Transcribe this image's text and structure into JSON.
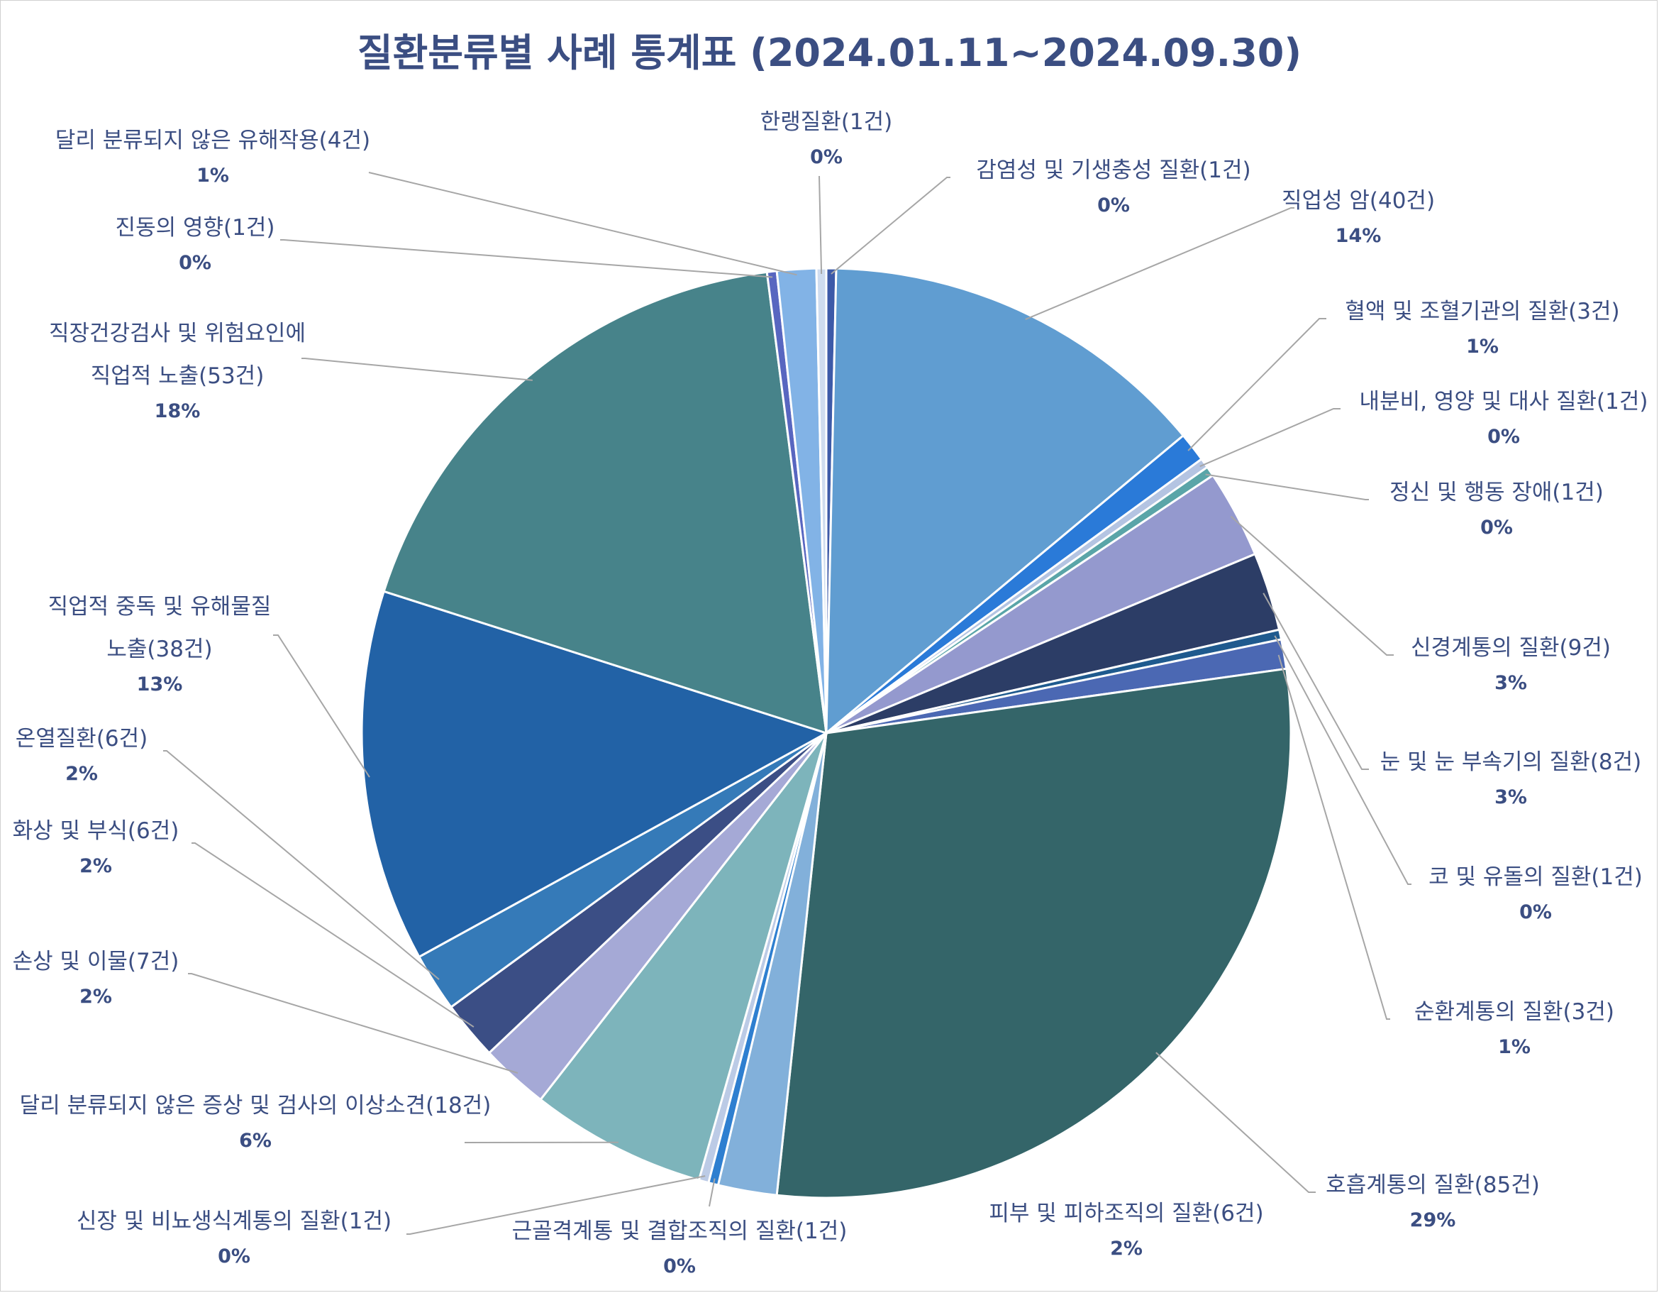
{
  "chart_data": {
    "type": "pie",
    "title": "질환분류별 사례 통계표 (2024.01.11~2024.09.30)",
    "start_angle_deg": 0,
    "direction": "clockwise",
    "slices": [
      {
        "label": "감염성 및 기생충성 질환(1건)",
        "value": 1,
        "percent": "0%",
        "color": "#3d5aa8"
      },
      {
        "label": "직업성 암(40건)",
        "value": 40,
        "percent": "14%",
        "color": "#609dd1"
      },
      {
        "label": "혈액 및 조혈기관의 질환(3건)",
        "value": 3,
        "percent": "1%",
        "color": "#2a7ad8"
      },
      {
        "label": "내분비, 영양 및 대사 질환(1건)",
        "value": 1,
        "percent": "0%",
        "color": "#b4c4e2"
      },
      {
        "label": "정신 및 행동 장애(1건)",
        "value": 1,
        "percent": "0%",
        "color": "#5aa5a8"
      },
      {
        "label": "신경계통의 질환(9건)",
        "value": 9,
        "percent": "3%",
        "color": "#9499ce"
      },
      {
        "label": "눈 및 눈 부속기의 질환(8건)",
        "value": 8,
        "percent": "3%",
        "color": "#2c3d66"
      },
      {
        "label": "코 및 유돌의 질환(1건)",
        "value": 1,
        "percent": "0%",
        "color": "#1f5a8e"
      },
      {
        "label": "순환계통의 질환(3건)",
        "value": 3,
        "percent": "1%",
        "color": "#4b68b3"
      },
      {
        "label": "호흡계통의 질환(85건)",
        "value": 85,
        "percent": "29%",
        "color": "#346569"
      },
      {
        "label": "피부 및 피하조직의 질환(6건)",
        "value": 6,
        "percent": "2%",
        "color": "#82b0da"
      },
      {
        "label": "근골격계통 및 결합조직의 질환(1건)",
        "value": 1,
        "percent": "0%",
        "color": "#2e7fd0"
      },
      {
        "label": "신장 및 비뇨생식계통의 질환(1건)",
        "value": 1,
        "percent": "0%",
        "color": "#bccbe6"
      },
      {
        "label": "달리 분류되지 않은 증상 및 검사의 이상소견(18건)",
        "value": 18,
        "percent": "6%",
        "color": "#7db4bb"
      },
      {
        "label": "손상 및 이물(7건)",
        "value": 7,
        "percent": "2%",
        "color": "#a5a9d6"
      },
      {
        "label": "화상 및 부식(6건)",
        "value": 6,
        "percent": "2%",
        "color": "#3b4e85"
      },
      {
        "label": "온열질환(6건)",
        "value": 6,
        "percent": "2%",
        "color": "#357ab8"
      },
      {
        "label": "직업적 중독 및 유해물질 노출(38건)",
        "value": 38,
        "percent": "13%",
        "color": "#2262a6"
      },
      {
        "label": "직장건강검사 및 위험요인에 직업적 노출(53건)",
        "value": 53,
        "percent": "18%",
        "color": "#47838a"
      },
      {
        "label": "진동의 영향(1건)",
        "value": 1,
        "percent": "0%",
        "color": "#5866c0"
      },
      {
        "label": "달리 분류되지 않은 유해작용(4건)",
        "value": 4,
        "percent": "1%",
        "color": "#82b3e6"
      },
      {
        "label": "한랭질환(1건)",
        "value": 1,
        "percent": "0%",
        "color": "#cfdcef"
      }
    ]
  }
}
